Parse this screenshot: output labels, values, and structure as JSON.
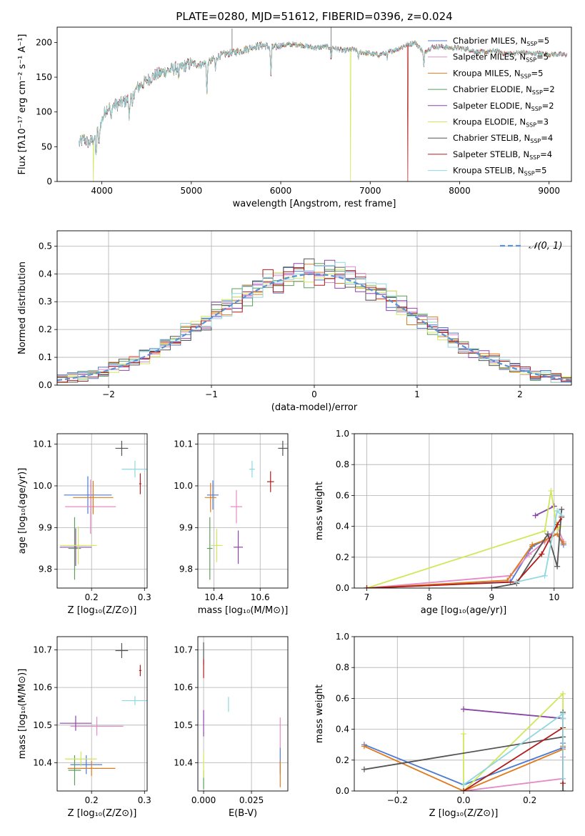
{
  "figure_title": "PLATE=0280, MJD=51612, FIBERID=0396, z=0.024",
  "models": [
    {
      "name": "Chabrier MILES, N",
      "sub": "SSP",
      "suffix": "=5",
      "color": "#4c7bd1"
    },
    {
      "name": "Salpeter MILES, N",
      "sub": "SSP",
      "suffix": "=5",
      "color": "#e58bc8"
    },
    {
      "name": "Kroupa MILES, N",
      "sub": "SSP",
      "suffix": "=5",
      "color": "#e07a1e"
    },
    {
      "name": "Chabrier ELODIE, N",
      "sub": "SSP",
      "suffix": "=2",
      "color": "#5d9e5d"
    },
    {
      "name": "Salpeter ELODIE, N",
      "sub": "SSP",
      "suffix": "=2",
      "color": "#8e44ad"
    },
    {
      "name": "Kroupa ELODIE, N",
      "sub": "SSP",
      "suffix": "=3",
      "color": "#cfe85a"
    },
    {
      "name": "Chabrier STELIB, N",
      "sub": "SSP",
      "suffix": "=4",
      "color": "#555555"
    },
    {
      "name": "Salpeter STELIB, N",
      "sub": "SSP",
      "suffix": "=4",
      "color": "#b01c1c"
    },
    {
      "name": "Kroupa STELIB, N",
      "sub": "SSP",
      "suffix": "=5",
      "color": "#8fd8e0"
    }
  ],
  "chart_data": [
    {
      "id": "spectrum",
      "type": "line",
      "xlabel": "wavelength [Angstrom, rest frame]",
      "ylabel": "Flux [fλ10⁻¹⁷ erg cm⁻² s⁻¹ A⁻¹]",
      "xlim": [
        3500,
        9250
      ],
      "ylim": [
        0,
        222
      ],
      "xticks": [
        "4000",
        "5000",
        "6000",
        "7000",
        "8000",
        "9000"
      ],
      "yticks": [
        "0",
        "50",
        "100",
        "150",
        "200"
      ],
      "grid": false,
      "legend": "top-right",
      "continuum": [
        [
          3750,
          55
        ],
        [
          3800,
          62
        ],
        [
          3850,
          55
        ],
        [
          3900,
          60
        ],
        [
          3950,
          70
        ],
        [
          4000,
          88
        ],
        [
          4050,
          105
        ],
        [
          4100,
          108
        ],
        [
          4200,
          112
        ],
        [
          4300,
          118
        ],
        [
          4400,
          135
        ],
        [
          4500,
          145
        ],
        [
          4600,
          153
        ],
        [
          4700,
          158
        ],
        [
          4800,
          162
        ],
        [
          4900,
          165
        ],
        [
          5000,
          170
        ],
        [
          5100,
          168
        ],
        [
          5200,
          172
        ],
        [
          5300,
          180
        ],
        [
          5400,
          184
        ],
        [
          5500,
          186
        ],
        [
          5600,
          190
        ],
        [
          5700,
          194
        ],
        [
          5800,
          196
        ],
        [
          5900,
          192
        ],
        [
          6000,
          196
        ],
        [
          6100,
          197
        ],
        [
          6200,
          197
        ],
        [
          6300,
          194
        ],
        [
          6400,
          192
        ],
        [
          6500,
          194
        ],
        [
          6600,
          192
        ],
        [
          6700,
          188
        ],
        [
          6800,
          190
        ],
        [
          6900,
          186
        ],
        [
          7000,
          184
        ],
        [
          7100,
          182
        ],
        [
          7200,
          186
        ],
        [
          7300,
          190
        ],
        [
          7400,
          196
        ],
        [
          7500,
          200
        ],
        [
          7600,
          186
        ],
        [
          7700,
          194
        ],
        [
          7800,
          194
        ],
        [
          7900,
          192
        ],
        [
          8000,
          192
        ],
        [
          8100,
          190
        ],
        [
          8200,
          186
        ],
        [
          8300,
          186
        ],
        [
          8400,
          188
        ],
        [
          8500,
          184
        ],
        [
          8600,
          184
        ],
        [
          8700,
          186
        ],
        [
          8800,
          184
        ],
        [
          8900,
          184
        ],
        [
          9000,
          183
        ],
        [
          9100,
          183
        ],
        [
          9200,
          182
        ]
      ],
      "dips": [
        [
          3934,
          35
        ],
        [
          3969,
          30
        ],
        [
          4102,
          25
        ],
        [
          4305,
          28
        ],
        [
          4340,
          25
        ],
        [
          4861,
          22
        ],
        [
          5175,
          45
        ],
        [
          5270,
          18
        ],
        [
          5890,
          40
        ],
        [
          6563,
          20
        ],
        [
          6870,
          12
        ],
        [
          7190,
          10
        ],
        [
          7600,
          22
        ]
      ],
      "spikes": [
        [
          5456,
          220
        ],
        [
          6562,
          222
        ]
      ],
      "drops": [
        {
          "model": 5,
          "x": 3905
        },
        {
          "model": 5,
          "x": 6780
        },
        {
          "model": 7,
          "x": 7420
        }
      ]
    },
    {
      "id": "residual_histogram",
      "type": "histogram",
      "xlabel": "(data-model)/error",
      "ylabel": "Normed distribution",
      "xlim": [
        -2.5,
        2.5
      ],
      "ylim": [
        0,
        0.555
      ],
      "xticks": [
        "−2",
        "−1",
        "0",
        "1",
        "2"
      ],
      "yticks": [
        "0.0",
        "0.1",
        "0.2",
        "0.3",
        "0.4",
        "0.5"
      ],
      "grid": true,
      "legend": "top-right",
      "reference_label": "𝒩(0, 1)",
      "reference_color": "#5b8fd6",
      "bin_width": 0.1
    },
    {
      "id": "age_vs_Z",
      "type": "scatter",
      "xlabel": "Z [log₁₀(Z/Z⊙)]",
      "ylabel": "age  [log₁₀(age/yr)]",
      "xlim": [
        0.135,
        0.305
      ],
      "ylim": [
        9.755,
        10.125
      ],
      "xticks": [
        "0.2",
        "0.3"
      ],
      "yticks": [
        "9.8",
        "9.9",
        "10.0",
        "10.1"
      ],
      "grid": true,
      "points": [
        {
          "model": 0,
          "x": 0.193,
          "xerr": 0.045,
          "y": 9.978,
          "yerr": 0.045
        },
        {
          "model": 1,
          "x": 0.198,
          "xerr": 0.048,
          "y": 9.95,
          "yerr": 0.065
        },
        {
          "model": 2,
          "x": 0.203,
          "xerr": 0.038,
          "y": 9.972,
          "yerr": 0.04
        },
        {
          "model": 3,
          "x": 0.168,
          "xerr": 0.012,
          "y": 9.85,
          "yerr": 0.075
        },
        {
          "model": 4,
          "x": 0.17,
          "xerr": 0.03,
          "y": 9.853,
          "yerr": 0.045
        },
        {
          "model": 5,
          "x": 0.175,
          "xerr": 0.035,
          "y": 9.857,
          "yerr": 0.045
        },
        {
          "model": 6,
          "x": 0.257,
          "xerr": 0.012,
          "y": 10.09,
          "yerr": 0.018
        },
        {
          "model": 7,
          "x": 0.292,
          "xerr": 0.002,
          "y": 10.005,
          "yerr": 0.025
        },
        {
          "model": 8,
          "x": 0.282,
          "xerr": 0.025,
          "y": 10.04,
          "yerr": 0.02
        }
      ]
    },
    {
      "id": "age_vs_mass",
      "type": "scatter",
      "xlabel": "mass [log₁₀(M/M⊙)]",
      "ylabel": "",
      "xlim": [
        10.33,
        10.72
      ],
      "ylim": [
        9.755,
        10.125
      ],
      "xticks": [
        "10.4",
        "10.6"
      ],
      "yticks": [
        "9.8",
        "9.9",
        "10.0",
        "10.1"
      ],
      "grid": true,
      "points": [
        {
          "model": 0,
          "x": 10.395,
          "xerr": 0.025,
          "y": 9.978,
          "yerr": 0.035
        },
        {
          "model": 1,
          "x": 10.497,
          "xerr": 0.025,
          "y": 9.95,
          "yerr": 0.04
        },
        {
          "model": 2,
          "x": 10.385,
          "xerr": 0.025,
          "y": 9.972,
          "yerr": 0.035
        },
        {
          "model": 3,
          "x": 10.382,
          "xerr": 0.012,
          "y": 9.85,
          "yerr": 0.075
        },
        {
          "model": 4,
          "x": 10.505,
          "xerr": 0.02,
          "y": 9.853,
          "yerr": 0.04
        },
        {
          "model": 5,
          "x": 10.412,
          "xerr": 0.025,
          "y": 9.857,
          "yerr": 0.04
        },
        {
          "model": 6,
          "x": 10.698,
          "xerr": 0.02,
          "y": 10.09,
          "yerr": 0.018
        },
        {
          "model": 7,
          "x": 10.645,
          "xerr": 0.015,
          "y": 10.01,
          "yerr": 0.025
        },
        {
          "model": 8,
          "x": 10.565,
          "xerr": 0.012,
          "y": 10.04,
          "yerr": 0.02
        }
      ]
    },
    {
      "id": "weight_vs_age",
      "type": "line",
      "xlabel": "age  [log₁₀(age/yr)]",
      "ylabel": "mass weight",
      "xlim": [
        6.8,
        10.3
      ],
      "ylim": [
        0,
        1
      ],
      "xticks": [
        "7",
        "8",
        "9",
        "10"
      ],
      "yticks": [
        "0.0",
        "0.2",
        "0.4",
        "0.6",
        "0.8",
        "1.0"
      ],
      "grid": true,
      "series": [
        {
          "model": 0,
          "x": [
            7.0,
            9.3,
            9.65,
            9.85,
            10.05,
            10.15
          ],
          "y": [
            0.0,
            0.04,
            0.27,
            0.31,
            0.35,
            0.28
          ]
        },
        {
          "model": 1,
          "x": [
            7.0,
            9.3,
            9.6,
            9.85,
            10.05,
            10.15
          ],
          "y": [
            0.0,
            0.08,
            0.22,
            0.3,
            0.4,
            0.3
          ]
        },
        {
          "model": 2,
          "x": [
            7.0,
            9.25,
            9.65,
            9.85,
            10.05,
            10.15
          ],
          "y": [
            0.0,
            0.05,
            0.28,
            0.31,
            0.35,
            0.29
          ]
        },
        {
          "model": 3,
          "x": [
            9.7,
            10.0
          ],
          "y": [
            0.47,
            0.53
          ]
        },
        {
          "model": 4,
          "x": [
            9.7,
            10.0
          ],
          "y": [
            0.47,
            0.53
          ]
        },
        {
          "model": 5,
          "x": [
            7.0,
            9.85,
            9.95,
            10.05,
            10.1
          ],
          "y": [
            0.0,
            0.37,
            0.63,
            0.38,
            0.4
          ]
        },
        {
          "model": 6,
          "x": [
            9.0,
            9.4,
            9.9,
            10.05,
            10.12
          ],
          "y": [
            0.0,
            0.03,
            0.35,
            0.14,
            0.51
          ]
        },
        {
          "model": 7,
          "x": [
            7.0,
            9.4,
            9.8,
            10.05,
            10.12
          ],
          "y": [
            0.0,
            0.04,
            0.22,
            0.41,
            0.46
          ]
        },
        {
          "model": 8,
          "x": [
            9.4,
            9.85,
            10.05,
            10.12
          ],
          "y": [
            0.04,
            0.08,
            0.5,
            0.47
          ]
        }
      ]
    },
    {
      "id": "mass_vs_Z",
      "type": "scatter",
      "xlabel": "Z [log₁₀(Z/Z⊙)]",
      "ylabel": "mass [log₁₀(M/M⊙)]",
      "xlim": [
        0.135,
        0.305
      ],
      "ylim": [
        10.325,
        10.735
      ],
      "xticks": [
        "0.2",
        "0.3"
      ],
      "yticks": [
        "10.4",
        "10.5",
        "10.6",
        "10.7"
      ],
      "grid": true,
      "points": [
        {
          "model": 0,
          "x": 0.19,
          "xerr": 0.03,
          "y": 10.395,
          "yerr": 0.025
        },
        {
          "model": 1,
          "x": 0.21,
          "xerr": 0.05,
          "y": 10.497,
          "yerr": 0.025
        },
        {
          "model": 2,
          "x": 0.2,
          "xerr": 0.045,
          "y": 10.385,
          "yerr": 0.02
        },
        {
          "model": 3,
          "x": 0.168,
          "xerr": 0.012,
          "y": 10.38,
          "yerr": 0.04
        },
        {
          "model": 4,
          "x": 0.17,
          "xerr": 0.03,
          "y": 10.505,
          "yerr": 0.02
        },
        {
          "model": 5,
          "x": 0.18,
          "xerr": 0.03,
          "y": 10.41,
          "yerr": 0.02
        },
        {
          "model": 6,
          "x": 0.257,
          "xerr": 0.012,
          "y": 10.698,
          "yerr": 0.02
        },
        {
          "model": 7,
          "x": 0.292,
          "xerr": 0.002,
          "y": 10.645,
          "yerr": 0.015
        },
        {
          "model": 8,
          "x": 0.282,
          "xerr": 0.025,
          "y": 10.565,
          "yerr": 0.012
        }
      ]
    },
    {
      "id": "mass_vs_ebv",
      "type": "scatter",
      "xlabel": "E(B-V)",
      "ylabel": "",
      "xlim": [
        -0.003,
        0.044
      ],
      "ylim": [
        10.325,
        10.735
      ],
      "xticks": [
        "0.000",
        "0.025"
      ],
      "yticks": [
        "10.4",
        "10.5",
        "10.6",
        "10.7"
      ],
      "grid": true,
      "points": [
        {
          "model": 0,
          "x": 0.04,
          "xerr": 0,
          "y": 10.405,
          "yerr": 0.035
        },
        {
          "model": 1,
          "x": 0.04,
          "xerr": 0,
          "y": 10.48,
          "yerr": 0.04
        },
        {
          "model": 2,
          "x": 0.04,
          "xerr": 0,
          "y": 10.37,
          "yerr": 0.035
        },
        {
          "model": 3,
          "x": 0.0,
          "xerr": 0,
          "y": 10.355,
          "yerr": 0.025
        },
        {
          "model": 4,
          "x": 0.0,
          "xerr": 0,
          "y": 10.505,
          "yerr": 0.035
        },
        {
          "model": 5,
          "x": 0.0,
          "xerr": 0,
          "y": 10.395,
          "yerr": 0.035
        },
        {
          "model": 6,
          "x": 0.0,
          "xerr": 0,
          "y": 10.69,
          "yerr": 0.03
        },
        {
          "model": 7,
          "x": 0.0,
          "xerr": 0,
          "y": 10.65,
          "yerr": 0.025
        },
        {
          "model": 8,
          "x": 0.013,
          "xerr": 0,
          "y": 10.555,
          "yerr": 0.02
        }
      ]
    },
    {
      "id": "weight_vs_Z",
      "type": "line",
      "xlabel": "Z [log₁₀(Z/Z⊙)]",
      "ylabel": "mass weight",
      "xlim": [
        -0.33,
        0.33
      ],
      "ylim": [
        0,
        1
      ],
      "xticks": [
        "−0.2",
        "0.0",
        "0.2"
      ],
      "yticks": [
        "0.0",
        "0.2",
        "0.4",
        "0.6",
        "0.8",
        "1.0"
      ],
      "grid": true,
      "series": [
        {
          "model": 0,
          "x": [
            -0.3,
            0.0,
            0.3,
            0.3
          ],
          "y": [
            0.3,
            0.04,
            0.28,
            0.31
          ]
        },
        {
          "model": 1,
          "x": [
            0.0,
            0.3,
            0.3
          ],
          "y": [
            0.0,
            0.08,
            0.22
          ]
        },
        {
          "model": 2,
          "x": [
            -0.3,
            0.0,
            0.3,
            0.3
          ],
          "y": [
            0.29,
            0.0,
            0.27,
            0.29
          ]
        },
        {
          "model": 3,
          "x": [
            0.0,
            0.3
          ],
          "y": [
            0.53,
            0.47
          ]
        },
        {
          "model": 4,
          "x": [
            0.0,
            0.3
          ],
          "y": [
            0.53,
            0.47
          ]
        },
        {
          "model": 5,
          "x": [
            0.0,
            0.0,
            0.3,
            0.3
          ],
          "y": [
            0.37,
            0.0,
            0.63,
            0.4
          ]
        },
        {
          "model": 6,
          "x": [
            -0.3,
            0.3,
            0.3,
            0.3
          ],
          "y": [
            0.14,
            0.35,
            0.51,
            0.0
          ]
        },
        {
          "model": 7,
          "x": [
            0.0,
            0.3,
            0.3
          ],
          "y": [
            0.0,
            0.41,
            0.05
          ]
        },
        {
          "model": 8,
          "x": [
            0.0,
            0.3,
            0.3,
            0.3
          ],
          "y": [
            0.04,
            0.5,
            0.47,
            0.08
          ]
        }
      ]
    }
  ]
}
